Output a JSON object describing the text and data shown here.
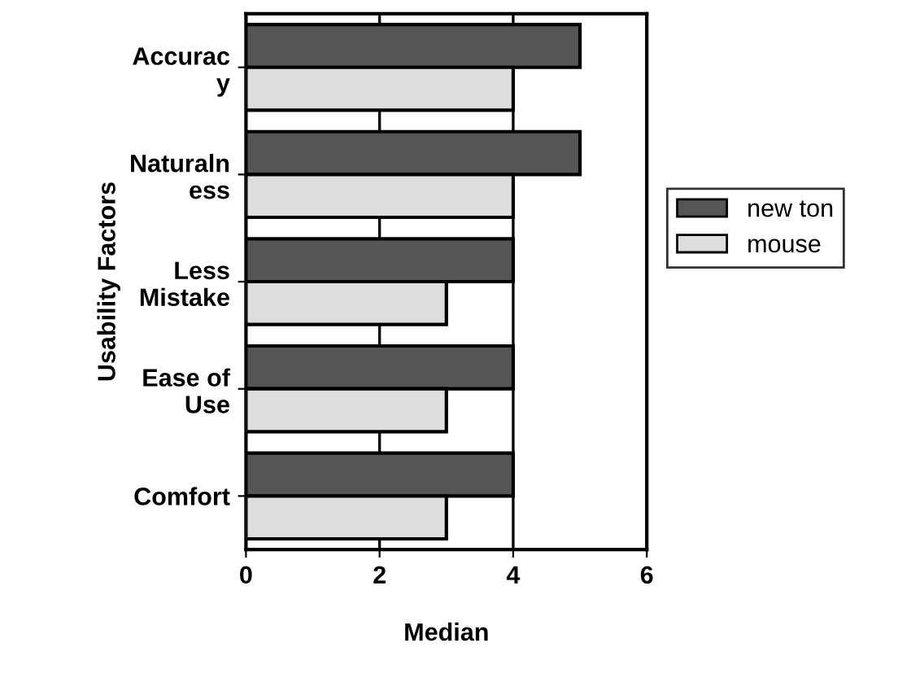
{
  "chart_data": {
    "type": "bar",
    "orientation": "horizontal",
    "xlabel": "Median",
    "ylabel": "Usability Factors",
    "categories": [
      "Accurac\ny",
      "Naturaln\ness",
      "Less\nMistake",
      "Ease of\nUse",
      "Comfort"
    ],
    "series": [
      {
        "name": "new ton",
        "color": "#555555",
        "values": [
          5,
          5,
          4,
          4,
          4
        ]
      },
      {
        "name": "mouse",
        "color": "#dddddd",
        "values": [
          4,
          4,
          3,
          3,
          3
        ]
      }
    ],
    "xlim": [
      0,
      6
    ],
    "xticks": [
      0,
      2,
      4,
      6
    ],
    "grid": "x",
    "legend": "right"
  }
}
